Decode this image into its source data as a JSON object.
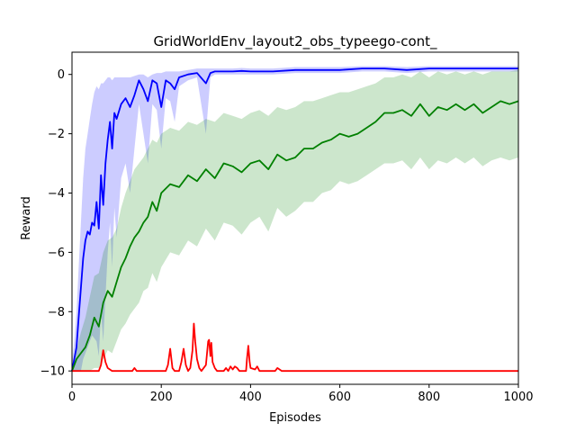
{
  "chart_data": {
    "type": "line",
    "title": "GridWorldEnv_layout2_obs_typeego-cont_",
    "xlabel": "Episodes",
    "ylabel": "Reward",
    "xlim": [
      0,
      1000
    ],
    "ylim": [
      -10.45,
      0.75
    ],
    "xticks": [
      0,
      200,
      400,
      600,
      800,
      1000
    ],
    "yticks": [
      -10,
      -8,
      -6,
      -4,
      -2,
      0
    ],
    "grid": false,
    "legend": "none",
    "series": [
      {
        "color": "#0000ff",
        "x": [
          0,
          5,
          10,
          15,
          20,
          25,
          30,
          35,
          40,
          45,
          50,
          55,
          60,
          65,
          70,
          75,
          80,
          85,
          90,
          95,
          100,
          110,
          120,
          130,
          140,
          150,
          160,
          170,
          180,
          190,
          200,
          210,
          220,
          230,
          240,
          260,
          280,
          300,
          310,
          320,
          340,
          360,
          380,
          400,
          450,
          500,
          550,
          600,
          650,
          700,
          750,
          800,
          850,
          900,
          950,
          1000
        ],
        "values": [
          -10,
          -9.6,
          -9.2,
          -8.2,
          -7.2,
          -6.2,
          -5.6,
          -5.3,
          -5.4,
          -5.0,
          -5.1,
          -4.3,
          -5.2,
          -3.4,
          -4.4,
          -3.0,
          -2.2,
          -1.6,
          -2.5,
          -1.3,
          -1.5,
          -1.0,
          -0.8,
          -1.1,
          -0.7,
          -0.2,
          -0.5,
          -0.9,
          -0.2,
          -0.3,
          -1.1,
          -0.2,
          -0.3,
          -0.5,
          -0.1,
          0.0,
          0.05,
          -0.3,
          0.05,
          0.1,
          0.1,
          0.1,
          0.12,
          0.1,
          0.1,
          0.15,
          0.15,
          0.15,
          0.2,
          0.2,
          0.15,
          0.2,
          0.2,
          0.2,
          0.2,
          0.2
        ],
        "upper": [
          -9.7,
          -9.0,
          -8.0,
          -6.5,
          -5.0,
          -3.5,
          -2.5,
          -2.0,
          -1.5,
          -1.0,
          -0.6,
          -0.4,
          -0.5,
          -0.3,
          -0.3,
          -0.2,
          -0.1,
          -0.1,
          -0.2,
          -0.1,
          -0.1,
          -0.1,
          -0.1,
          -0.1,
          -0.05,
          0.0,
          0.0,
          -0.1,
          0.0,
          0.05,
          0.05,
          0.1,
          0.1,
          0.1,
          0.1,
          0.15,
          0.2,
          0.2,
          0.2,
          0.2,
          0.2,
          0.2,
          0.22,
          0.2,
          0.2,
          0.25,
          0.25,
          0.25,
          0.28,
          0.28,
          0.25,
          0.28,
          0.28,
          0.28,
          0.28,
          0.28
        ],
        "lower": [
          -10,
          -10,
          -10,
          -10,
          -10,
          -9.6,
          -9.4,
          -9.2,
          -9.0,
          -8.8,
          -8.9,
          -9.0,
          -9.5,
          -8.0,
          -9.0,
          -7.5,
          -6.0,
          -5.0,
          -6.5,
          -4.5,
          -5.5,
          -3.5,
          -3.0,
          -4.0,
          -2.5,
          -1.0,
          -2.0,
          -3.0,
          -1.0,
          -1.2,
          -2.5,
          -0.8,
          -0.9,
          -1.6,
          -0.4,
          -0.2,
          -0.1,
          -2.0,
          -0.1,
          0.0,
          0.0,
          0.0,
          0.0,
          0.0,
          0.0,
          0.05,
          0.05,
          0.05,
          0.1,
          0.1,
          0.05,
          0.1,
          0.1,
          0.1,
          0.1,
          0.1
        ]
      },
      {
        "color": "#008000",
        "x": [
          0,
          10,
          20,
          30,
          40,
          50,
          60,
          70,
          80,
          90,
          100,
          110,
          120,
          130,
          140,
          150,
          160,
          170,
          180,
          190,
          200,
          220,
          240,
          260,
          280,
          300,
          320,
          340,
          360,
          380,
          400,
          420,
          440,
          460,
          480,
          500,
          520,
          540,
          560,
          580,
          600,
          620,
          640,
          660,
          680,
          700,
          720,
          740,
          760,
          780,
          800,
          820,
          840,
          860,
          880,
          900,
          920,
          940,
          960,
          980,
          1000
        ],
        "values": [
          -10,
          -9.6,
          -9.4,
          -9.2,
          -8.8,
          -8.2,
          -8.5,
          -7.7,
          -7.3,
          -7.5,
          -7.0,
          -6.5,
          -6.2,
          -5.8,
          -5.5,
          -5.3,
          -5.0,
          -4.8,
          -4.3,
          -4.6,
          -4.0,
          -3.7,
          -3.8,
          -3.4,
          -3.6,
          -3.2,
          -3.5,
          -3.0,
          -3.1,
          -3.3,
          -3.0,
          -2.9,
          -3.2,
          -2.7,
          -2.9,
          -2.8,
          -2.5,
          -2.5,
          -2.3,
          -2.2,
          -2.0,
          -2.1,
          -2.0,
          -1.8,
          -1.6,
          -1.3,
          -1.3,
          -1.2,
          -1.4,
          -1.0,
          -1.4,
          -1.1,
          -1.2,
          -1.0,
          -1.2,
          -1.0,
          -1.3,
          -1.1,
          -0.9,
          -1.0,
          -0.9
        ],
        "upper": [
          -9.9,
          -9.3,
          -8.7,
          -8.2,
          -7.5,
          -6.8,
          -6.7,
          -6.0,
          -5.6,
          -5.5,
          -5.2,
          -4.5,
          -4.0,
          -3.6,
          -3.2,
          -3.0,
          -2.8,
          -2.5,
          -2.2,
          -2.3,
          -2.0,
          -1.8,
          -1.9,
          -1.6,
          -1.7,
          -1.5,
          -1.6,
          -1.3,
          -1.4,
          -1.5,
          -1.3,
          -1.2,
          -1.4,
          -1.1,
          -1.2,
          -1.1,
          -0.9,
          -0.9,
          -0.8,
          -0.7,
          -0.6,
          -0.6,
          -0.5,
          -0.4,
          -0.3,
          -0.1,
          -0.1,
          0.0,
          -0.1,
          0.1,
          -0.1,
          0.1,
          0.0,
          0.1,
          0.0,
          0.1,
          0.0,
          0.1,
          0.1,
          0.1,
          0.15
        ],
        "lower": [
          -10,
          -10,
          -10,
          -10,
          -10,
          -9.9,
          -9.9,
          -9.6,
          -9.3,
          -9.4,
          -9.0,
          -8.6,
          -8.4,
          -8.1,
          -7.9,
          -7.7,
          -7.3,
          -7.2,
          -6.7,
          -7.0,
          -6.5,
          -6.0,
          -6.1,
          -5.6,
          -5.8,
          -5.2,
          -5.6,
          -5.0,
          -5.1,
          -5.4,
          -5.0,
          -4.8,
          -5.3,
          -4.5,
          -4.8,
          -4.6,
          -4.3,
          -4.3,
          -4.0,
          -3.9,
          -3.6,
          -3.7,
          -3.6,
          -3.4,
          -3.2,
          -3.0,
          -3.0,
          -2.9,
          -3.2,
          -2.8,
          -3.2,
          -2.9,
          -3.0,
          -2.8,
          -3.0,
          -2.8,
          -3.1,
          -2.9,
          -2.8,
          -2.9,
          -2.8
        ]
      },
      {
        "color": "#ff0000",
        "x": [
          0,
          60,
          65,
          70,
          75,
          80,
          90,
          100,
          135,
          140,
          145,
          150,
          210,
          215,
          220,
          225,
          230,
          240,
          245,
          250,
          255,
          260,
          265,
          270,
          273,
          276,
          280,
          285,
          290,
          300,
          305,
          307,
          310,
          312,
          315,
          320,
          325,
          340,
          345,
          350,
          355,
          360,
          365,
          370,
          375,
          380,
          390,
          392,
          395,
          398,
          400,
          410,
          415,
          420,
          455,
          460,
          465,
          470,
          1000
        ],
        "values": [
          -10,
          -10,
          -9.8,
          -9.3,
          -9.7,
          -9.9,
          -10,
          -10,
          -10,
          -9.9,
          -10,
          -10,
          -10,
          -9.8,
          -9.25,
          -9.9,
          -10,
          -10,
          -9.7,
          -9.25,
          -9.8,
          -10,
          -9.9,
          -9.3,
          -8.4,
          -9.0,
          -9.6,
          -9.9,
          -10,
          -9.8,
          -9.0,
          -8.95,
          -9.5,
          -9.05,
          -9.7,
          -9.9,
          -10,
          -10,
          -9.9,
          -10,
          -9.85,
          -9.95,
          -9.85,
          -9.9,
          -10,
          -10,
          -10,
          -9.6,
          -9.15,
          -9.7,
          -9.9,
          -9.95,
          -9.85,
          -10,
          -10,
          -9.9,
          -9.95,
          -10,
          -10
        ]
      }
    ]
  }
}
